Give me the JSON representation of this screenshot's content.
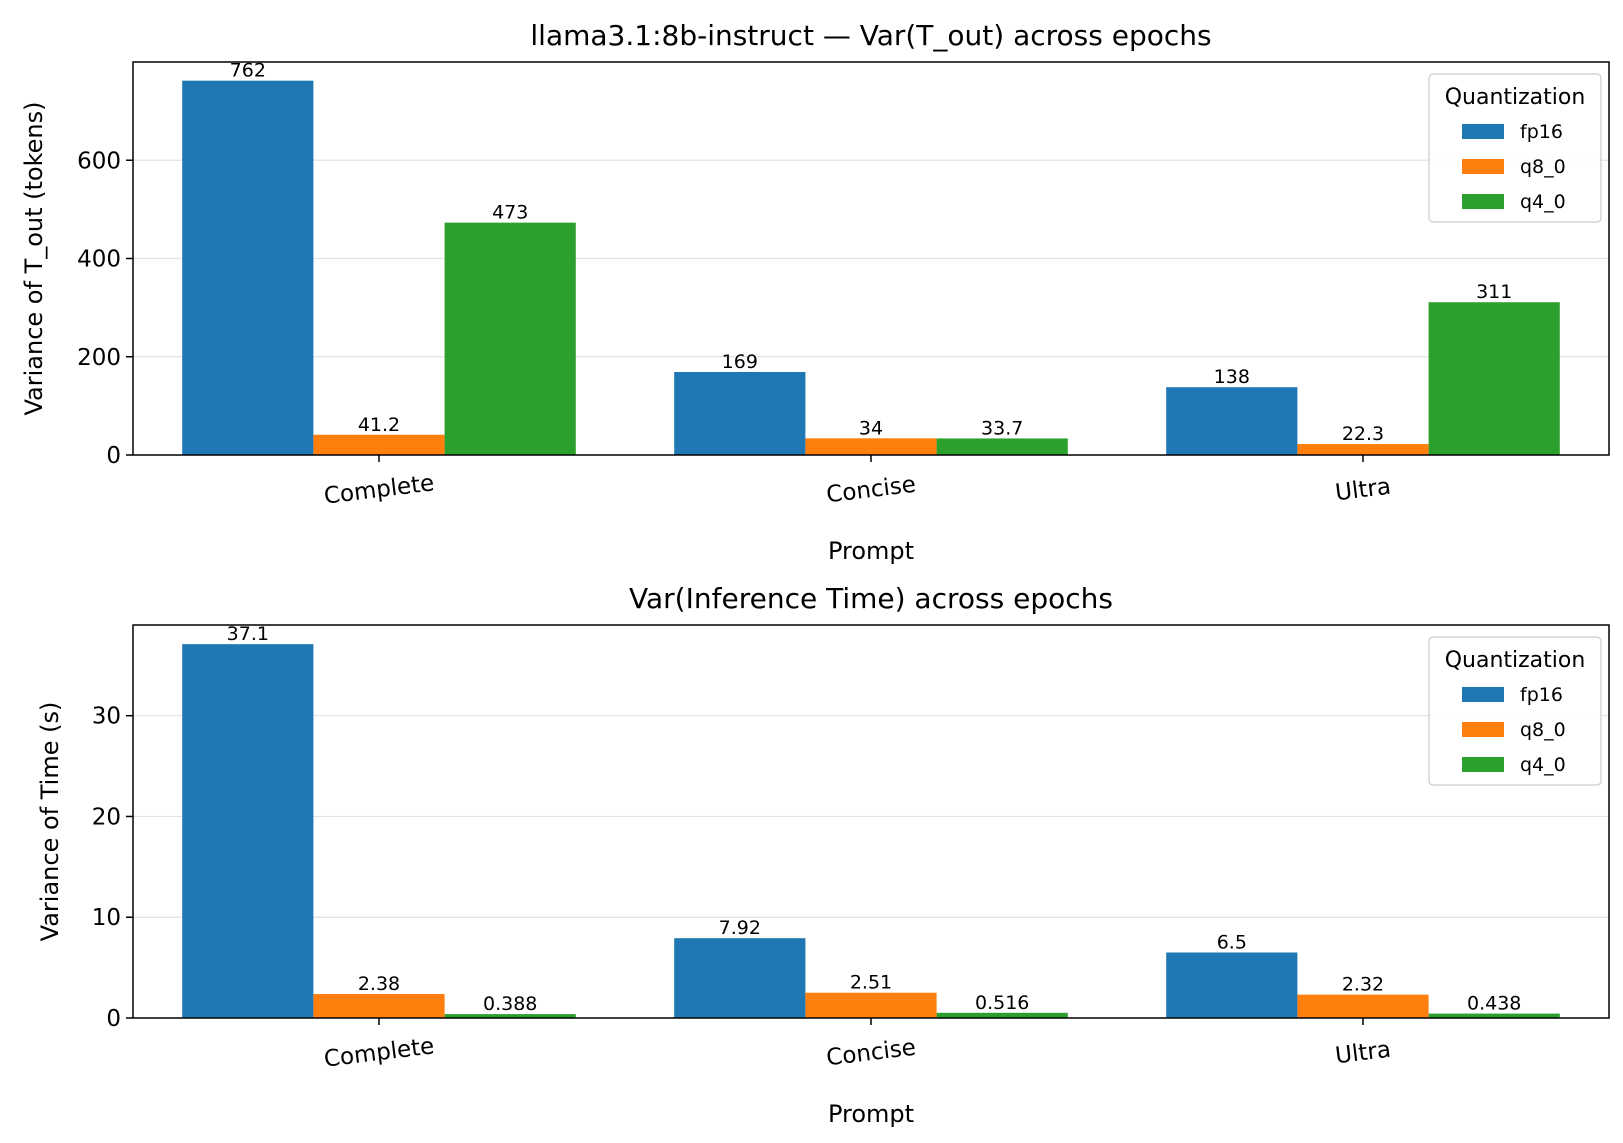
{
  "legend_title": "Quantization",
  "chart_data": [
    {
      "type": "bar",
      "title": "llama3.1:8b-instruct — Var(T_out) across epochs",
      "xlabel": "Prompt",
      "ylabel": "Variance of T_out (tokens)",
      "categories": [
        "Complete",
        "Concise",
        "Ultra"
      ],
      "ylim": [
        0,
        800
      ],
      "yticks": [
        0,
        200,
        400,
        600
      ],
      "grid": "horizontal",
      "legend_title": "Quantization",
      "legend_position": "top-right",
      "series": [
        {
          "name": "fp16",
          "color": "#1f77b4",
          "values": [
            762,
            169,
            138
          ],
          "labels": [
            "762",
            "169",
            "138"
          ]
        },
        {
          "name": "q8_0",
          "color": "#ff7f0e",
          "values": [
            41.2,
            34,
            22.3
          ],
          "labels": [
            "41.2",
            "34",
            "22.3"
          ]
        },
        {
          "name": "q4_0",
          "color": "#2ca02c",
          "values": [
            473,
            33.7,
            311
          ],
          "labels": [
            "473",
            "33.7",
            "311"
          ]
        }
      ]
    },
    {
      "type": "bar",
      "title": "Var(Inference Time) across epochs",
      "xlabel": "Prompt",
      "ylabel": "Variance of Time (s)",
      "categories": [
        "Complete",
        "Concise",
        "Ultra"
      ],
      "ylim": [
        0,
        39
      ],
      "yticks": [
        0,
        10,
        20,
        30
      ],
      "grid": "horizontal",
      "legend_title": "Quantization",
      "legend_position": "top-right",
      "series": [
        {
          "name": "fp16",
          "color": "#1f77b4",
          "values": [
            37.1,
            7.92,
            6.5
          ],
          "labels": [
            "37.1",
            "7.92",
            "6.5"
          ]
        },
        {
          "name": "q8_0",
          "color": "#ff7f0e",
          "values": [
            2.38,
            2.51,
            2.32
          ],
          "labels": [
            "2.38",
            "2.51",
            "2.32"
          ]
        },
        {
          "name": "q4_0",
          "color": "#2ca02c",
          "values": [
            0.388,
            0.516,
            0.438
          ],
          "labels": [
            "0.388",
            "0.516",
            "0.438"
          ]
        }
      ]
    }
  ]
}
